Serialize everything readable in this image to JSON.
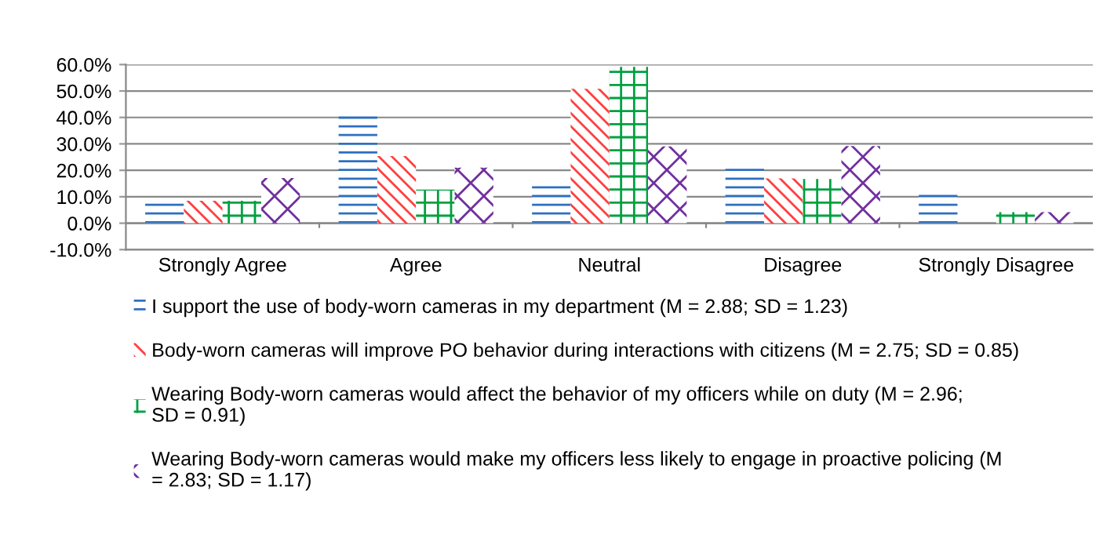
{
  "chart_data": {
    "type": "bar",
    "categories": [
      "Strongly Agree",
      "Agree",
      "Neutral",
      "Disagree",
      "Strongly Disagree"
    ],
    "series": [
      {
        "name": "I support the use of body-worn cameras in my department (M = 2.88; SD = 1.23)",
        "color": "#2e6fc0",
        "values": [
          8.5,
          41.8,
          16.1,
          21.0,
          12.5
        ]
      },
      {
        "name": "Body-worn cameras will improve PO behavior during interactions with citizens (M = 2.75; SD = 0.85)",
        "color": "#ff4040",
        "values": [
          8.5,
          25.4,
          50.8,
          16.9,
          0
        ]
      },
      {
        "name": "Wearing Body-worn cameras would affect the behavior of my officers while on duty (M = 2.96;\nSD = 0.91)",
        "color": "#00a040",
        "values": [
          8.5,
          12.7,
          59.1,
          16.7,
          4.2
        ]
      },
      {
        "name": "Wearing Body-worn cameras would make my officers less likely to engage in proactive policing (M\n= 2.83; SD = 1.17)",
        "color": "#7030a0",
        "values": [
          17.1,
          21.0,
          29.0,
          29.2,
          4.2
        ]
      }
    ],
    "ylim": [
      -10,
      60
    ],
    "yticks": [
      {
        "value": -10,
        "label": "-10.0%"
      },
      {
        "value": 0,
        "label": "0.0%"
      },
      {
        "value": 10,
        "label": "10.0%"
      },
      {
        "value": 20,
        "label": "20.0%"
      },
      {
        "value": 30,
        "label": "30.0%"
      },
      {
        "value": 40,
        "label": "40.0%"
      },
      {
        "value": 50,
        "label": "50.0%"
      },
      {
        "value": 60,
        "label": "60.0%"
      }
    ],
    "grid": "y",
    "legend": "bottom"
  }
}
